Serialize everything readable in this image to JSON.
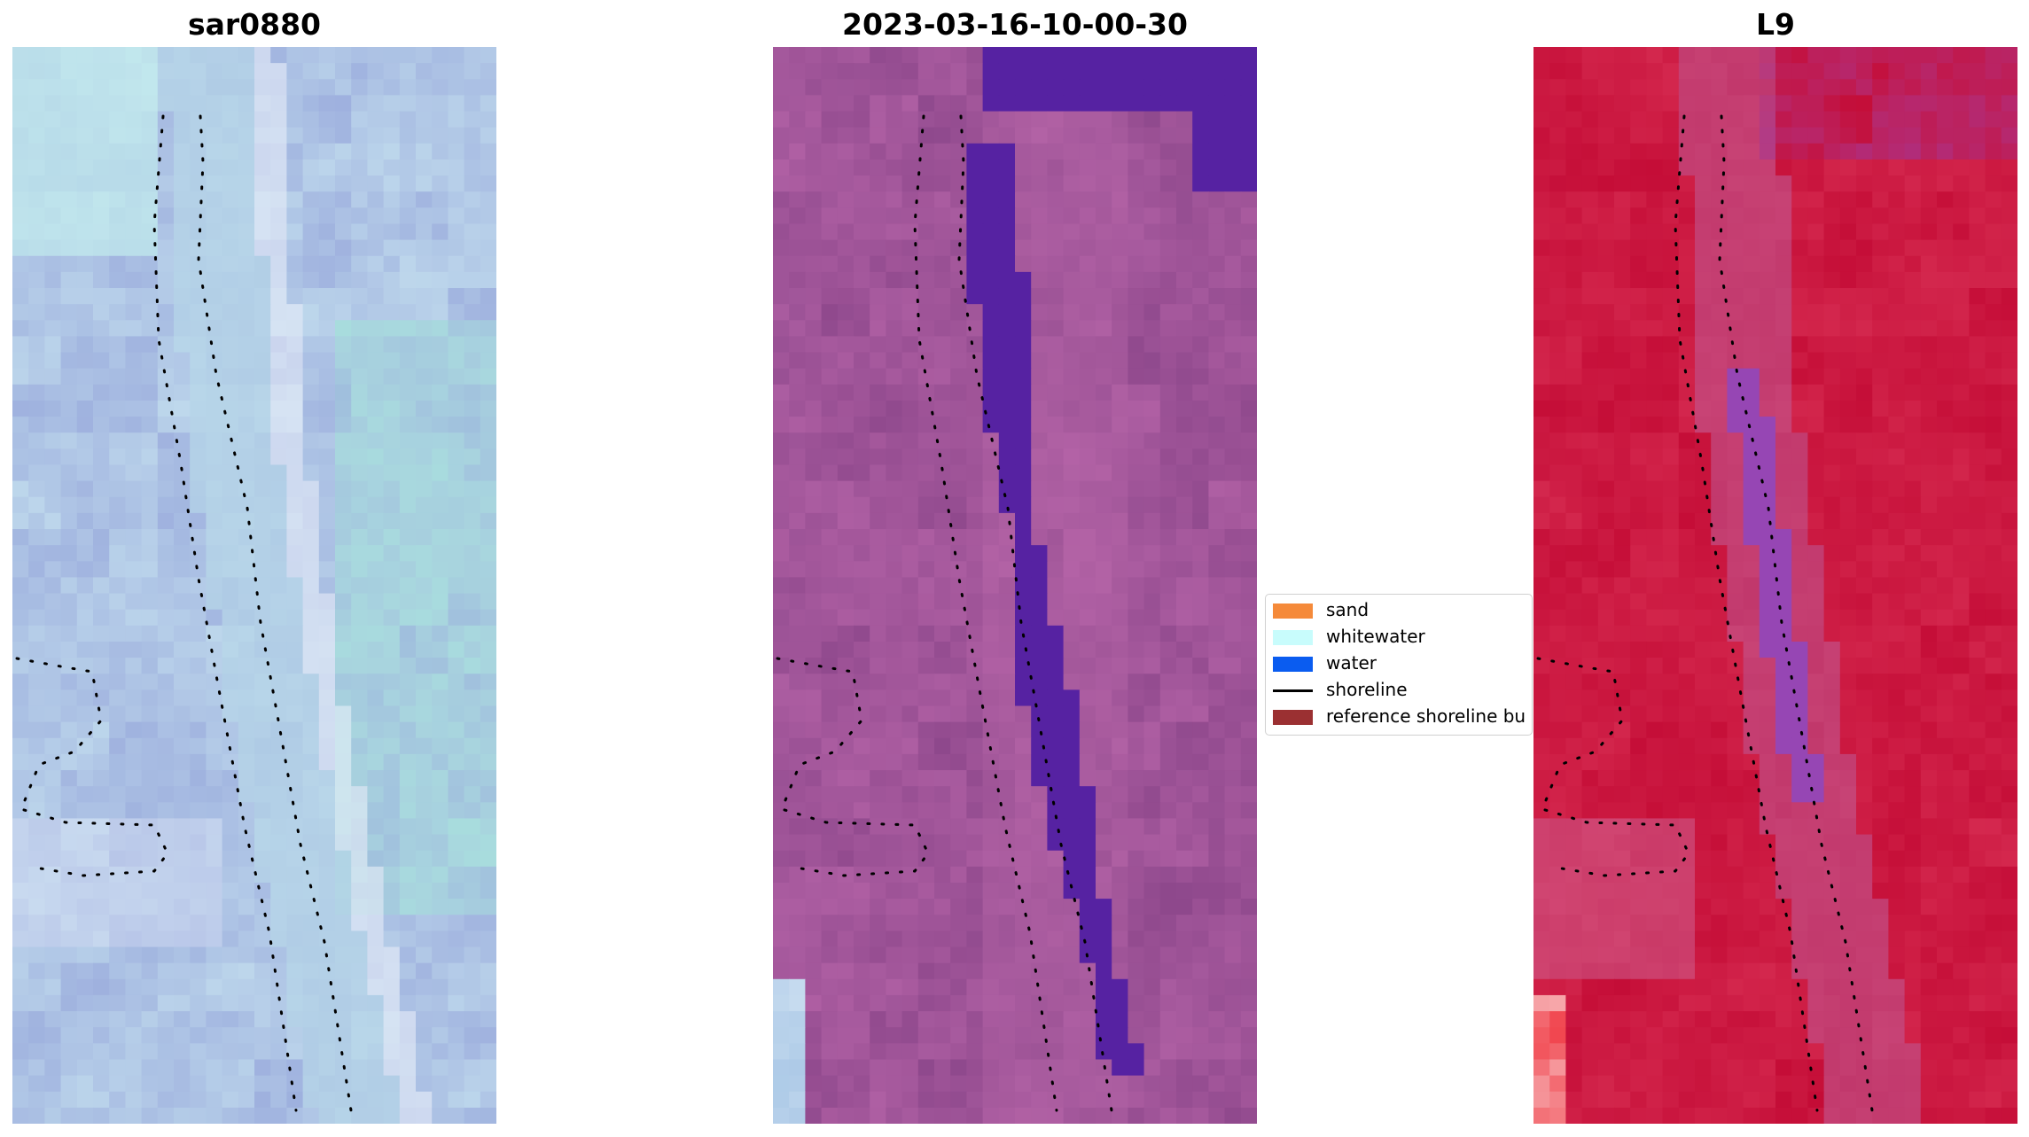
{
  "panels": [
    {
      "title": "sar0880",
      "style": "rgb",
      "base": "#a9bfe0"
    },
    {
      "title": "2023-03-16-10-00-30",
      "style": "classified",
      "base": "#9a4f93",
      "water_class": "#5522a2"
    },
    {
      "title": "L9",
      "style": "nir",
      "base": "#c8123e"
    }
  ],
  "legend": {
    "items": [
      {
        "label": "sand",
        "color": "#f58a3a",
        "kind": "patch"
      },
      {
        "label": "whitewater",
        "color": "#c8fcfc",
        "kind": "patch"
      },
      {
        "label": "water",
        "color": "#0a5cf0",
        "kind": "patch"
      },
      {
        "label": "shoreline",
        "color": "#000000",
        "kind": "line"
      },
      {
        "label": "reference shoreline bu",
        "color": "#9b3032",
        "kind": "patch"
      }
    ]
  }
}
